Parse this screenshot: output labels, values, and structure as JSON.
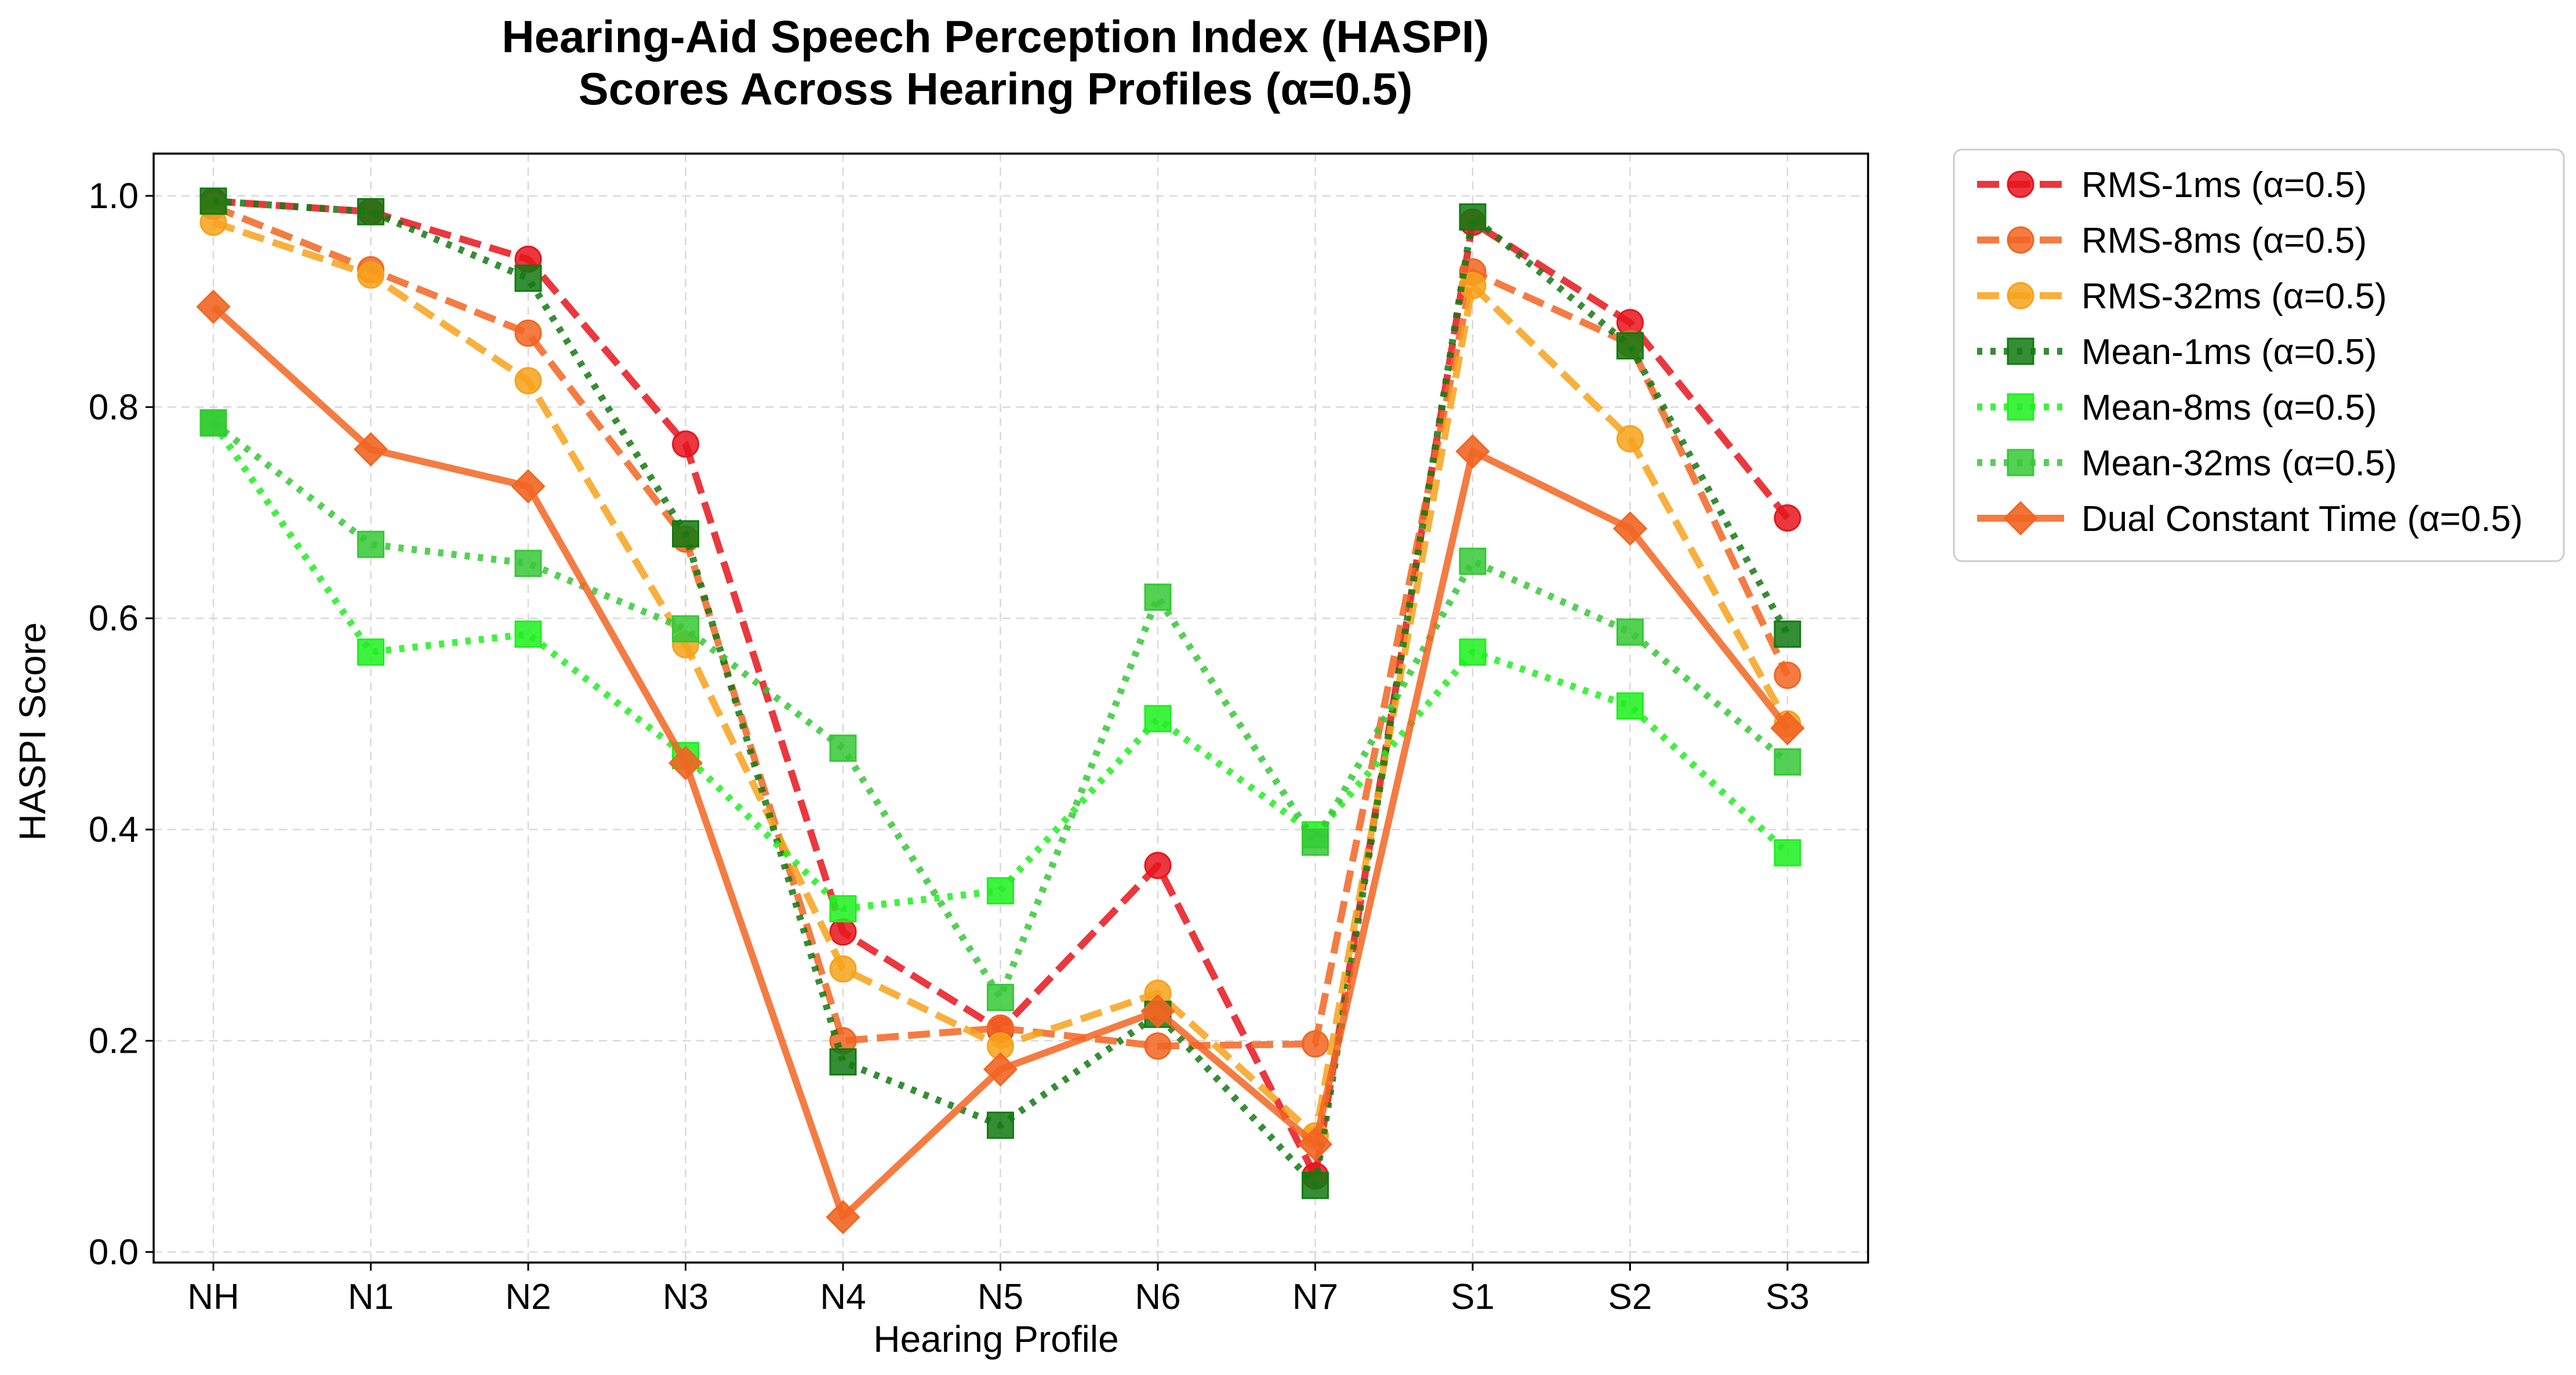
{
  "chart_data": {
    "type": "line",
    "title_line1": "Hearing-Aid Speech Perception Index (HASPI)",
    "title_line2": "Scores Across Hearing Profiles (α=0.5)",
    "xlabel": "Hearing Profile",
    "ylabel": "HASPI Score",
    "categories": [
      "NH",
      "N1",
      "N2",
      "N3",
      "N4",
      "N5",
      "N6",
      "N7",
      "S1",
      "S2",
      "S3"
    ],
    "ylim": [
      -0.01,
      1.04
    ],
    "yticks": [
      0.0,
      0.2,
      0.4,
      0.6,
      0.8,
      1.0
    ],
    "ytick_labels": [
      "0.0",
      "0.2",
      "0.4",
      "0.6",
      "0.8",
      "1.0"
    ],
    "grid": true,
    "legend_position": "outside-right-top",
    "series": [
      {
        "name": "RMS-1ms (α=0.5)",
        "color": "#e8141c",
        "line_style": "dashed",
        "marker": "circle",
        "values": [
          0.995,
          0.985,
          0.94,
          0.765,
          0.303,
          0.21,
          0.366,
          0.072,
          0.975,
          0.88,
          0.695
        ]
      },
      {
        "name": "RMS-8ms (α=0.5)",
        "color": "#f26522",
        "line_style": "dashed",
        "marker": "circle",
        "values": [
          0.99,
          0.93,
          0.87,
          0.675,
          0.2,
          0.212,
          0.195,
          0.197,
          0.928,
          0.86,
          0.546
        ]
      },
      {
        "name": "RMS-32ms (α=0.5)",
        "color": "#f7a21b",
        "line_style": "dashed",
        "marker": "circle",
        "values": [
          0.975,
          0.925,
          0.825,
          0.575,
          0.268,
          0.195,
          0.245,
          0.11,
          0.915,
          0.77,
          0.5
        ]
      },
      {
        "name": "Mean-1ms (α=0.5)",
        "color": "#127a12",
        "line_style": "dotted",
        "marker": "square",
        "values": [
          0.995,
          0.985,
          0.922,
          0.68,
          0.18,
          0.12,
          0.225,
          0.063,
          0.98,
          0.858,
          0.585
        ]
      },
      {
        "name": "Mean-8ms (α=0.5)",
        "color": "#1ef01e",
        "line_style": "dotted",
        "marker": "square",
        "values": [
          0.785,
          0.568,
          0.585,
          0.47,
          0.325,
          0.342,
          0.505,
          0.395,
          0.568,
          0.517,
          0.378
        ]
      },
      {
        "name": "Mean-32ms (α=0.5)",
        "color": "#36c836",
        "line_style": "dotted",
        "marker": "square",
        "values": [
          0.785,
          0.67,
          0.652,
          0.59,
          0.477,
          0.241,
          0.62,
          0.388,
          0.654,
          0.587,
          0.464
        ]
      },
      {
        "name": "Dual Constant Time (α=0.5)",
        "color": "#f26522",
        "line_style": "solid",
        "marker": "diamond",
        "values": [
          0.895,
          0.76,
          0.725,
          0.463,
          0.033,
          0.173,
          0.228,
          0.102,
          0.758,
          0.685,
          0.496
        ]
      }
    ]
  }
}
